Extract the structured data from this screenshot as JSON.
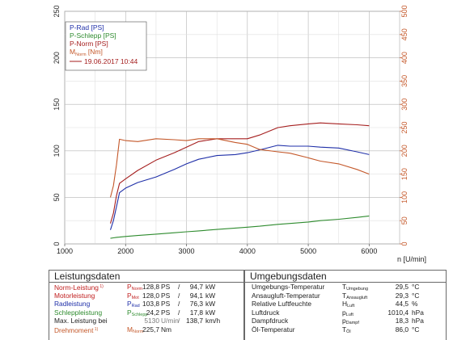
{
  "chart_data": {
    "type": "line",
    "x": [
      1750,
      1800,
      1850,
      1900,
      2000,
      2200,
      2500,
      2800,
      3000,
      3200,
      3500,
      3800,
      4000,
      4200,
      4500,
      4700,
      5000,
      5200,
      5500,
      5800,
      6000
    ],
    "series": [
      {
        "name": "P-Rad [PS]",
        "color": "#1f2fa8",
        "axis": "left",
        "values": [
          15,
          25,
          40,
          55,
          60,
          66,
          72,
          80,
          86,
          91,
          95,
          96,
          98,
          101,
          106,
          105,
          105,
          104,
          103,
          99,
          96
        ]
      },
      {
        "name": "P-Schlepp [PS]",
        "color": "#2e8b2e",
        "axis": "left",
        "values": [
          6,
          6.5,
          7,
          7.3,
          8,
          9,
          10.5,
          12,
          13,
          14,
          15.5,
          17,
          18,
          19,
          21,
          22,
          23.5,
          25,
          26.5,
          28.5,
          30
        ]
      },
      {
        "name": "P-Norm [PS]",
        "color": "#a51e1e",
        "axis": "left",
        "values": [
          22,
          33,
          52,
          65,
          70,
          79,
          90,
          98,
          104,
          110,
          113,
          113,
          113,
          117,
          125,
          127,
          129,
          130,
          129,
          128,
          127
        ]
      },
      {
        "name": "M Norm [Nm]",
        "color": "#c4582a",
        "axis": "right",
        "values": [
          100,
          125,
          170,
          225,
          222,
          220,
          226,
          224,
          222,
          226,
          226,
          218,
          214,
          203,
          198,
          195,
          185,
          178,
          172,
          160,
          150
        ]
      }
    ],
    "left_axis": {
      "range": [
        0,
        250
      ],
      "ticks": [
        "0",
        "50",
        "100",
        "150",
        "200",
        "250"
      ],
      "color": "#2a2a2a"
    },
    "right_axis": {
      "range": [
        0,
        500
      ],
      "ticks": [
        "0",
        "50",
        "100",
        "150",
        "200",
        "250",
        "300",
        "350",
        "400",
        "450",
        "500"
      ],
      "color": "#c4582a"
    },
    "x_axis": {
      "range": [
        1000,
        6500
      ],
      "ticks": [
        "1000",
        "2000",
        "3000",
        "4000",
        "5000",
        "6000"
      ],
      "label": "n [U/min]"
    },
    "grid": true,
    "legend": {
      "position": "top-left",
      "entries": [
        {
          "text": "P-Rad [PS]",
          "color": "#1f2fa8"
        },
        {
          "text": "P-Schlepp [PS]",
          "color": "#2e8b2e"
        },
        {
          "text": "P-Norm [PS]",
          "color": "#a51e1e"
        },
        {
          "text": "M",
          "sub": "Norm",
          "text2": " [Nm]",
          "color": "#c4582a"
        }
      ],
      "date_line": "19.06.2017 10:44",
      "date_color": "#a51e1e"
    }
  },
  "leistungsdaten": {
    "title": "Leistungsdaten",
    "rows": [
      {
        "label": "Norm-Leistung",
        "footnote": "1)",
        "color": "#c01d1d",
        "sym": "P",
        "sub": "Norm",
        "v1": "128,8",
        "u1": "PS",
        "sep": "/",
        "v2": "94,7",
        "u2": "kW"
      },
      {
        "label": "Motorleistung",
        "footnote": "",
        "color": "#c01d1d",
        "sym": "P",
        "sub": "Mot",
        "v1": "128,0",
        "u1": "PS",
        "sep": "/",
        "v2": "94,1",
        "u2": "kW"
      },
      {
        "label": "Radleistung",
        "footnote": "",
        "color": "#1f2fa8",
        "sym": "P",
        "sub": "Rad",
        "v1": "103,8",
        "u1": "PS",
        "sep": "/",
        "v2": "76,3",
        "u2": "kW"
      },
      {
        "label": "Schleppleistung",
        "footnote": "",
        "color": "#2e8b2e",
        "sym": "P",
        "sub": "Schlepp",
        "v1": "24,2",
        "u1": "PS",
        "sep": "/",
        "v2": "17,8",
        "u2": "kW"
      },
      {
        "label": "Max. Leistung bei",
        "footnote": "",
        "color": "#222222",
        "sym": "",
        "sub": "",
        "v1": "5130",
        "u1": "U/min",
        "sep": "/",
        "v2": "138,7",
        "u2": "km/h",
        "gray": true
      },
      {
        "label": "Drehmoment",
        "footnote": "1)",
        "color": "#c4582a",
        "sym": "M",
        "sub": "Norm",
        "v1": "225,7",
        "u1": "Nm",
        "sep": "",
        "v2": "",
        "u2": ""
      }
    ]
  },
  "umgebungsdaten": {
    "title": "Umgebungsdaten",
    "rows": [
      {
        "label": "Umgebungs-Temperatur",
        "sym": "T",
        "sub": "Umgebung",
        "val": "29,5",
        "unit": "°C"
      },
      {
        "label": "Ansaugluft-Temperatur",
        "sym": "T",
        "sub": "Ansaugluft",
        "val": "29,3",
        "unit": "°C"
      },
      {
        "label": "Relative Luftfeuchte",
        "sym": "H",
        "sub": "Luft",
        "val": "44,5",
        "unit": "%"
      },
      {
        "label": "Luftdruck",
        "sym": "p",
        "sub": "Luft",
        "val": "1010,4",
        "unit": "hPa"
      },
      {
        "label": "Dampfdruck",
        "sym": "p",
        "sub": "Dampf",
        "val": "18,3",
        "unit": "hPa"
      },
      {
        "label": "Öl-Temperatur",
        "sym": "T",
        "sub": "Öl",
        "val": "86,0",
        "unit": "°C"
      }
    ]
  }
}
